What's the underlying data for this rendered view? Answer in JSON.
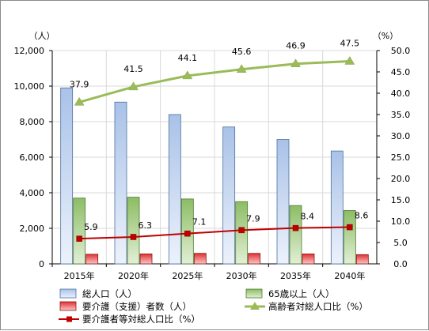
{
  "chart_data": {
    "type": "bar",
    "categories": [
      "2015年",
      "2020年",
      "2025年",
      "2030年",
      "2035年",
      "2040年"
    ],
    "y_left": {
      "unit": "（人）",
      "ylim": [
        0,
        12000
      ],
      "ticks": [
        "0",
        "2,000",
        "4,000",
        "6,000",
        "8,000",
        "10,000",
        "12,000"
      ]
    },
    "y_right": {
      "unit": "（%）",
      "ylim": [
        0,
        50
      ],
      "ticks": [
        "0.0",
        "5.0",
        "10.0",
        "15.0",
        "20.0",
        "25.0",
        "30.0",
        "35.0",
        "40.0",
        "45.0",
        "50.0"
      ]
    },
    "series": [
      {
        "name": "総人口（人）",
        "kind": "bar",
        "axis": "left",
        "color": "#b8cce4",
        "values": [
          9900,
          9100,
          8400,
          7700,
          7000,
          6350
        ]
      },
      {
        "name": "65歳以上（人）",
        "kind": "bar",
        "axis": "left",
        "color": "#9bc47a",
        "values": [
          3700,
          3750,
          3650,
          3500,
          3280,
          3000
        ]
      },
      {
        "name": "要介護（支援）者数（人）",
        "kind": "bar",
        "axis": "left",
        "color": "#e23b3b",
        "values": [
          540,
          560,
          590,
          590,
          560,
          520
        ]
      },
      {
        "name": "高齢者対総人口比（%）",
        "kind": "line",
        "axis": "right",
        "color": "#9bbb59",
        "values": [
          37.9,
          41.5,
          44.1,
          45.6,
          46.9,
          47.5
        ],
        "labels": [
          "37.9",
          "41.5",
          "44.1",
          "45.6",
          "46.9",
          "47.5"
        ]
      },
      {
        "name": "要介護者等対総人口比（%）",
        "kind": "line",
        "axis": "right",
        "color": "#c00000",
        "values": [
          5.9,
          6.3,
          7.1,
          7.9,
          8.4,
          8.6
        ],
        "labels": [
          "5.9",
          "6.3",
          "7.1",
          "7.9",
          "8.4",
          "8.6"
        ]
      }
    ],
    "grid": true,
    "legend_position": "bottom"
  }
}
